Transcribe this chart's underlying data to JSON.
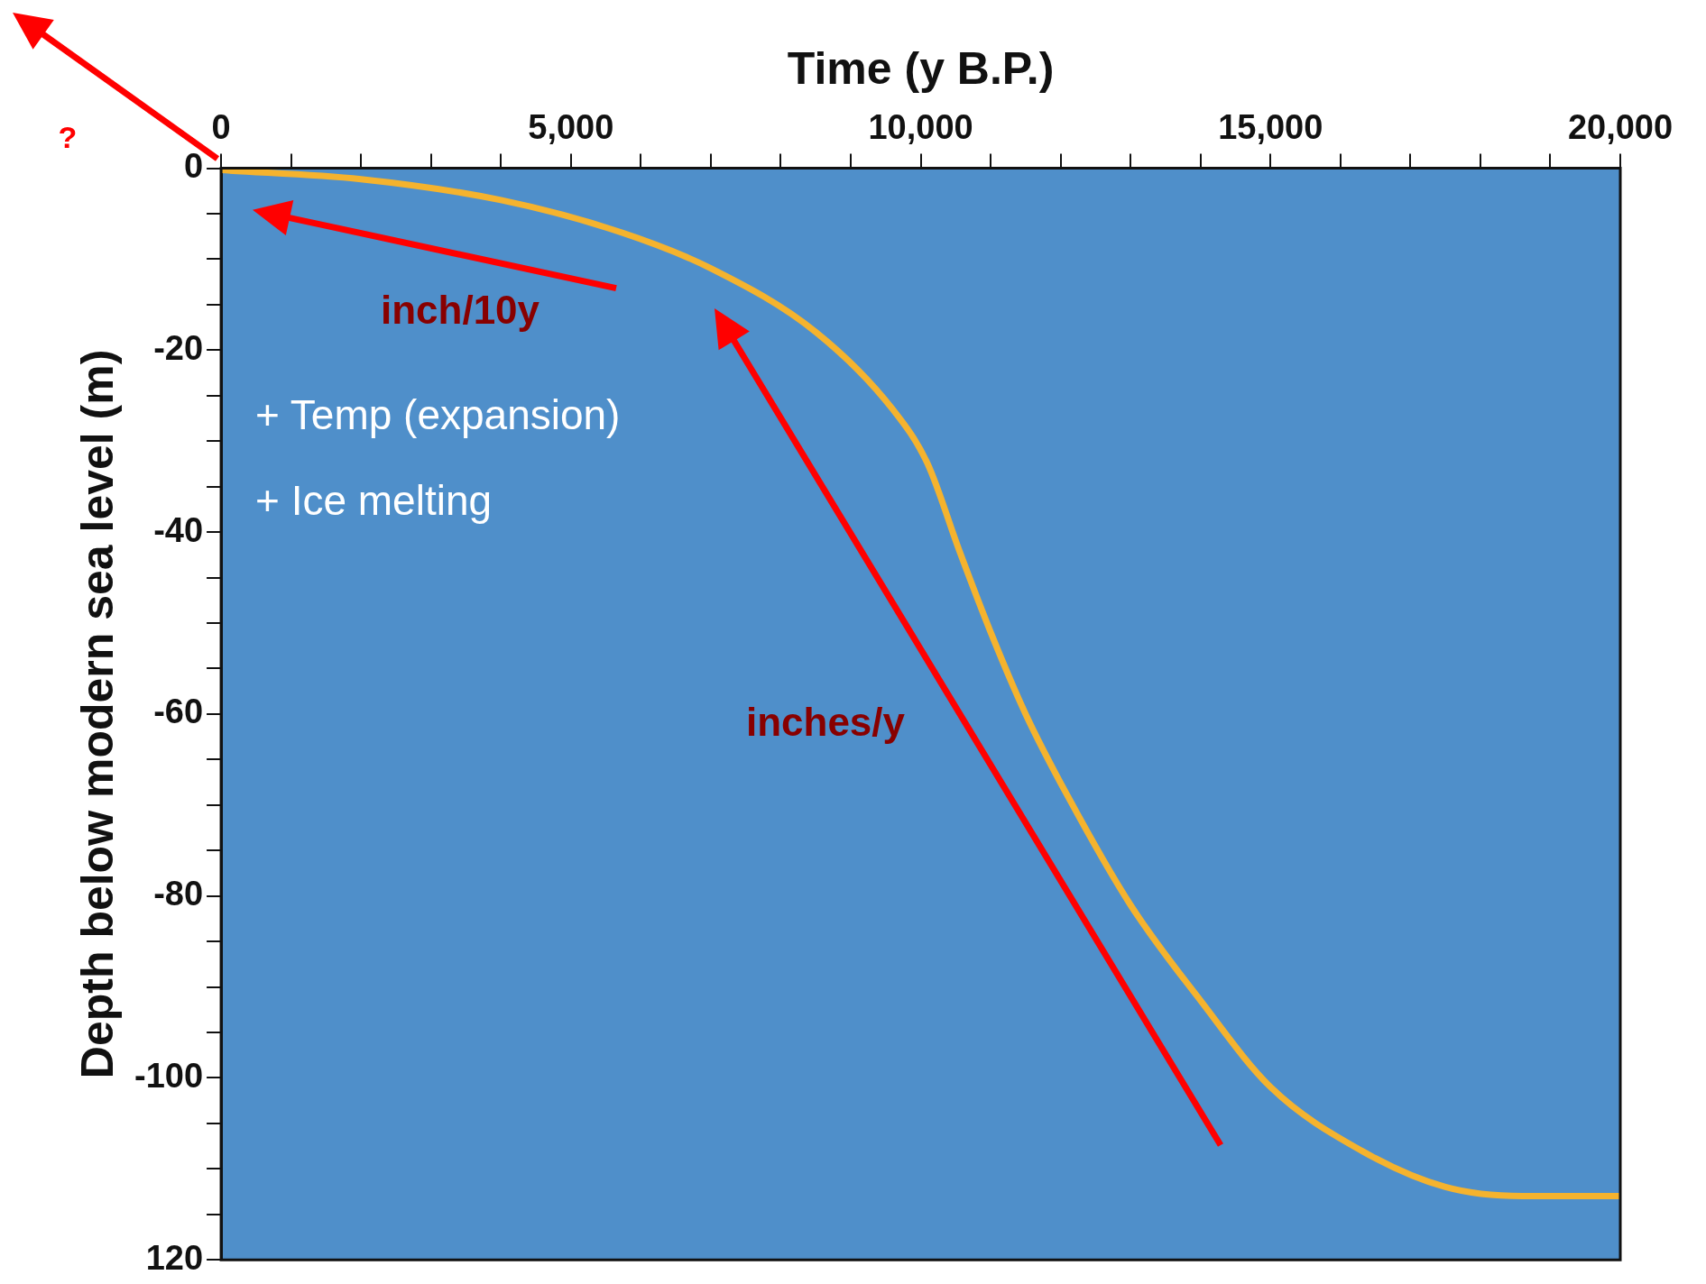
{
  "chart_data": {
    "type": "line",
    "xlabel": "Time (y B.P.)",
    "ylabel": "Depth below modern sea level (m)",
    "xlim": [
      0,
      20000
    ],
    "xticks": [
      0,
      {
        "value": 1000,
        "label": null
      },
      {
        "value": 2000,
        "label": null
      },
      {
        "value": 3000,
        "label": null
      },
      {
        "value": 4000,
        "label": null
      },
      {
        "value": 5000,
        "label": "5,000"
      },
      {
        "value": 6000,
        "label": null
      },
      {
        "value": 7000,
        "label": null
      },
      {
        "value": 8000,
        "label": null
      },
      {
        "value": 9000,
        "label": null
      },
      {
        "value": 10000,
        "label": "10,000"
      },
      {
        "value": 11000,
        "label": null
      },
      {
        "value": 12000,
        "label": null
      },
      {
        "value": 13000,
        "label": null
      },
      {
        "value": 14000,
        "label": null
      },
      {
        "value": 15000,
        "label": "15,000"
      },
      {
        "value": 16000,
        "label": null
      },
      {
        "value": 17000,
        "label": null
      },
      {
        "value": 18000,
        "label": null
      },
      {
        "value": 19000,
        "label": null
      },
      {
        "value": 20000,
        "label": "20,000"
      }
    ],
    "ylim": [
      -120,
      0
    ],
    "yticks": [
      0,
      {
        "value": -5,
        "label": null
      },
      {
        "value": -10,
        "label": null
      },
      {
        "value": -15,
        "label": null
      },
      -20,
      {
        "value": -25,
        "label": null
      },
      {
        "value": -30,
        "label": null
      },
      {
        "value": -35,
        "label": null
      },
      -40,
      {
        "value": -45,
        "label": null
      },
      {
        "value": -50,
        "label": null
      },
      {
        "value": -55,
        "label": null
      },
      -60,
      {
        "value": -65,
        "label": null
      },
      {
        "value": -70,
        "label": null
      },
      {
        "value": -75,
        "label": null
      },
      -80,
      {
        "value": -85,
        "label": null
      },
      {
        "value": -90,
        "label": null
      },
      {
        "value": -95,
        "label": null
      },
      -100,
      {
        "value": -105,
        "label": null
      },
      {
        "value": -110,
        "label": null
      },
      {
        "value": -115,
        "label": null
      },
      {
        "value": -120,
        "label": "120"
      }
    ],
    "x": [
      0,
      2000,
      4000,
      5700,
      7000,
      8500,
      9600,
      10100,
      10550,
      11000,
      11500,
      12100,
      13000,
      14000,
      15000,
      16300,
      17500,
      18600,
      20000
    ],
    "series": [
      {
        "color": "#f5b32e",
        "values": [
          -0.2,
          -1.2,
          -3.5,
          -7,
          -11,
          -18,
          -26.5,
          -32.5,
          -42,
          -51,
          -60,
          -69,
          -81,
          -91.5,
          -101,
          -108,
          -112,
          -113,
          -113
        ]
      }
    ],
    "grid": false,
    "legend": false,
    "marker": "none",
    "line_style": "solid",
    "annotations": [
      "?",
      "inch/10y",
      "inches/y",
      "+ Temp (expansion)",
      "+ Ice melting"
    ]
  }
}
